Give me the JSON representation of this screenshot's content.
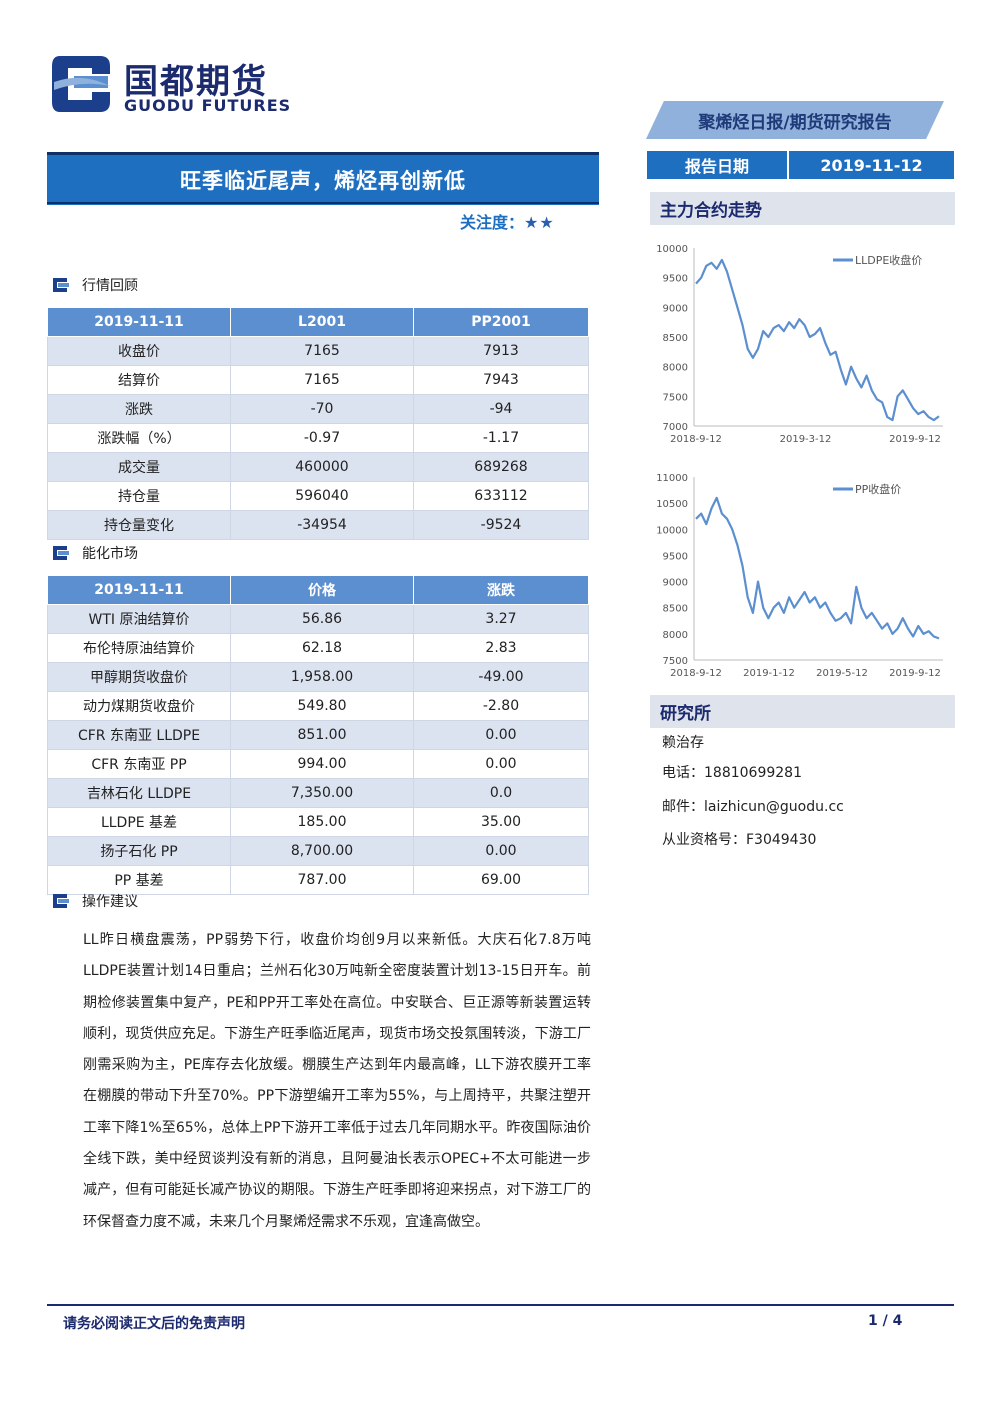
{
  "logo": {
    "cn": "国都期货",
    "en": "GUODU FUTURES"
  },
  "report_type": "聚烯烃日报/期货研究报告",
  "title": "旺季临近尾声，烯烃再创新低",
  "attention_label": "关注度：",
  "attention_stars": "★★",
  "report_date_label": "报告日期",
  "report_date": "2019-11-12",
  "sections": {
    "market_review": "行情回顾",
    "energy_market": "能化市场",
    "operation": "操作建议"
  },
  "market_table": {
    "headers": [
      "2019-11-11",
      "L2001",
      "PP2001"
    ],
    "rows": [
      [
        "收盘价",
        "7165",
        "7913"
      ],
      [
        "结算价",
        "7165",
        "7943"
      ],
      [
        "涨跌",
        "-70",
        "-94"
      ],
      [
        "涨跌幅（%）",
        "-0.97",
        "-1.17"
      ],
      [
        "成交量",
        "460000",
        "689268"
      ],
      [
        "持仓量",
        "596040",
        "633112"
      ],
      [
        "持仓量变化",
        "-34954",
        "-9524"
      ]
    ]
  },
  "energy_table": {
    "headers": [
      "2019-11-11",
      "价格",
      "涨跌"
    ],
    "rows": [
      [
        "WTI 原油结算价",
        "56.86",
        "3.27"
      ],
      [
        "布伦特原油结算价",
        "62.18",
        "2.83"
      ],
      [
        "甲醇期货收盘价",
        "1,958.00",
        "-49.00"
      ],
      [
        "动力煤期货收盘价",
        "549.80",
        "-2.80"
      ],
      [
        "CFR 东南亚 LLDPE",
        "851.00",
        "0.00"
      ],
      [
        "CFR 东南亚 PP",
        "994.00",
        "0.00"
      ],
      [
        "吉林石化 LLDPE",
        "7,350.00",
        "0.0"
      ],
      [
        "LLDPE 基差",
        "185.00",
        "35.00"
      ],
      [
        "扬子石化 PP",
        "8,700.00",
        "0.00"
      ],
      [
        "PP 基差",
        "787.00",
        "69.00"
      ]
    ]
  },
  "operation_text": "LL昨日横盘震荡，PP弱势下行，收盘价均创9月以来新低。大庆石化7.8万吨LLDPE装置计划14日重启；兰州石化30万吨新全密度装置计划13-15日开车。前期检修装置集中复产，PE和PP开工率处在高位。中安联合、巨正源等新装置运转顺利，现货供应充足。下游生产旺季临近尾声，现货市场交投氛围转淡，下游工厂刚需采购为主，PE库存去化放缓。棚膜生产达到年内最高峰，LL下游农膜开工率在棚膜的带动下升至70%。PP下游塑编开工率为55%，与上周持平，共聚注塑开工率下降1%至65%，总体上PP下游开工率低于过去几年同期水平。昨夜国际油价全线下跌，美中经贸谈判没有新的消息，且阿曼油长表示OPEC+不太可能进一步减产，但有可能延长减产协议的期限。下游生产旺季即将迎来拐点，对下游工厂的环保督查力度不减，未来几个月聚烯烃需求不乐观，宜逢高做空。",
  "sidebar": {
    "trend_title": "主力合约走势",
    "research_title": "研究所",
    "analyst": "赖治存",
    "phone": "电话：18810699281",
    "email": "邮件：laizhicun@guodu.cc",
    "license": "从业资格号：F3049430"
  },
  "chart_data": [
    {
      "type": "line",
      "series": [
        {
          "name": "LLDPE收盘价",
          "values": [
            9400,
            9500,
            9700,
            9750,
            9650,
            9800,
            9600,
            9300,
            9000,
            8700,
            8300,
            8150,
            8300,
            8600,
            8500,
            8650,
            8700,
            8600,
            8750,
            8650,
            8800,
            8700,
            8500,
            8550,
            8650,
            8400,
            8200,
            8250,
            7950,
            7700,
            8000,
            7800,
            7650,
            7850,
            7600,
            7450,
            7400,
            7150,
            7100,
            7500,
            7600,
            7450,
            7300,
            7200,
            7250,
            7150,
            7100,
            7165
          ]
        }
      ],
      "x_tick_labels": [
        "2018-9-12",
        "2019-3-12",
        "2019-9-12"
      ],
      "ylim": [
        7000,
        10000
      ],
      "y_ticks": [
        7000,
        7500,
        8000,
        8500,
        9000,
        9500,
        10000
      ],
      "legend": "top-right",
      "color": "#5b8fd0"
    },
    {
      "type": "line",
      "series": [
        {
          "name": "PP收盘价",
          "values": [
            10200,
            10300,
            10100,
            10400,
            10600,
            10300,
            10200,
            10000,
            9700,
            9300,
            8700,
            8400,
            9000,
            8500,
            8300,
            8500,
            8600,
            8400,
            8700,
            8500,
            8650,
            8800,
            8600,
            8700,
            8500,
            8600,
            8400,
            8250,
            8300,
            8400,
            8200,
            8900,
            8500,
            8300,
            8400,
            8250,
            8100,
            8200,
            8000,
            8100,
            8300,
            8100,
            7950,
            8150,
            8000,
            8050,
            7950,
            7913
          ]
        }
      ],
      "x_tick_labels": [
        "2018-9-12",
        "2019-1-12",
        "2019-5-12",
        "2019-9-12"
      ],
      "ylim": [
        7500,
        11000
      ],
      "y_ticks": [
        7500,
        8000,
        8500,
        9000,
        9500,
        10000,
        10500,
        11000
      ],
      "legend": "top-right",
      "color": "#5b8fd0"
    }
  ],
  "footer": {
    "disclaimer": "请务必阅读正文后的免责声明",
    "page": "1 / 4"
  },
  "colors": {
    "brand": "#1f6fc1",
    "navy": "#1c2a6e",
    "table_header": "#5b8fd0",
    "row_alt": "#dce3f0"
  }
}
